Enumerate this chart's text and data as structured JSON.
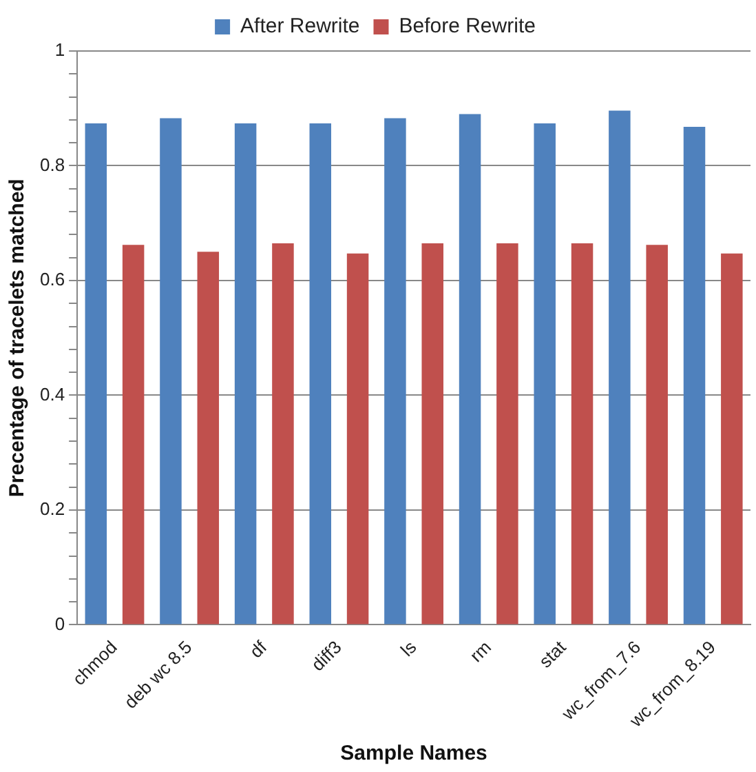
{
  "chart_data": {
    "type": "bar",
    "xlabel": "Sample Names",
    "ylabel": "Precentage of tracelets matched",
    "categories": [
      "chmod",
      "deb wc 8.5",
      "df",
      "diff3",
      "ls",
      "rm",
      "stat",
      "wc_from_7.6",
      "wc_from_8.19"
    ],
    "series": [
      {
        "name": "After Rewrite",
        "color": "#4f81bd",
        "values": [
          0.874,
          0.883,
          0.874,
          0.874,
          0.883,
          0.89,
          0.874,
          0.896,
          0.868
        ]
      },
      {
        "name": "Before Rewrite",
        "color": "#c0504d",
        "values": [
          0.662,
          0.65,
          0.665,
          0.647,
          0.665,
          0.665,
          0.665,
          0.662,
          0.647
        ]
      }
    ],
    "ylim": [
      0,
      1
    ],
    "yticks": [
      0,
      {
        "value": 0.04,
        "label": null
      },
      {
        "value": 0.08,
        "label": null
      },
      {
        "value": 0.12,
        "label": null
      },
      {
        "value": 0.16,
        "label": null
      },
      0.2,
      {
        "value": 0.24,
        "label": null
      },
      {
        "value": 0.28,
        "label": null
      },
      {
        "value": 0.32,
        "label": null
      },
      {
        "value": 0.36,
        "label": null
      },
      0.4,
      {
        "value": 0.44,
        "label": null
      },
      {
        "value": 0.48,
        "label": null
      },
      {
        "value": 0.52,
        "label": null
      },
      {
        "value": 0.56,
        "label": null
      },
      0.6,
      {
        "value": 0.64,
        "label": null
      },
      {
        "value": 0.68,
        "label": null
      },
      {
        "value": 0.72,
        "label": null
      },
      {
        "value": 0.76,
        "label": null
      },
      0.8,
      {
        "value": 0.84,
        "label": null
      },
      {
        "value": 0.88,
        "label": null
      },
      {
        "value": 0.92,
        "label": null
      },
      {
        "value": 0.96,
        "label": null
      },
      1
    ],
    "grid": "y",
    "legend": "top"
  }
}
